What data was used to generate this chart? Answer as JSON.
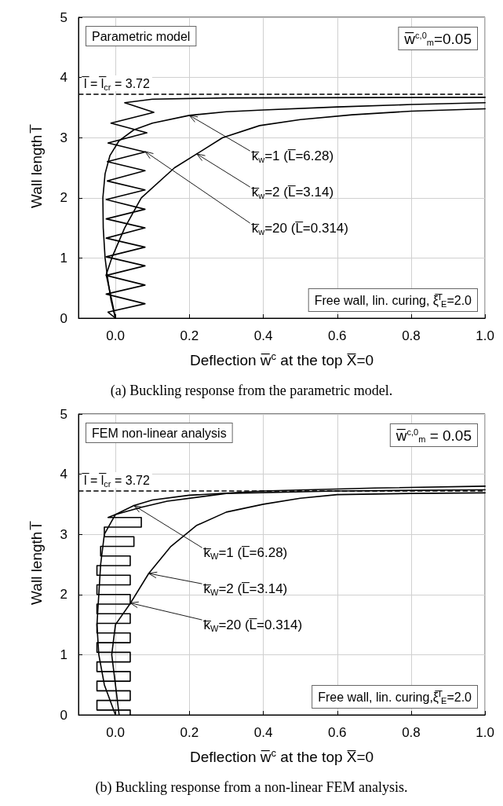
{
  "chart_data": [
    {
      "type": "line",
      "title": "(a) Buckling response from the parametric model.",
      "xlabel": "Deflection w̅$^{c}$ at the top X̅=0",
      "ylabel": "Wall length l̅",
      "xlim": [
        -0.1,
        1.0
      ],
      "ylim": [
        0,
        5
      ],
      "xticks": [
        {
          "value": 0,
          "label": "0.0"
        },
        {
          "value": 0.2,
          "label": "0.2"
        },
        {
          "value": 0.4,
          "label": "0.4"
        },
        {
          "value": 0.6,
          "label": "0.6"
        },
        {
          "value": 0.8,
          "label": "0.8"
        },
        {
          "value": 1,
          "label": "1.0"
        }
      ],
      "yticks": [
        0,
        1,
        2,
        3,
        4,
        5
      ],
      "grid": true,
      "line_style": "solid",
      "ref_lines": [
        {
          "axis": "y",
          "value": 3.72,
          "label": "l̅ = l̅$_{cr}$ = 3.72",
          "line_style": "dashed",
          "color": "#000000"
        }
      ],
      "annotations": [
        "Parametric model",
        "w̅$^{c,0}$$_{m}$=0.05",
        "Free wall, lin. curing, ξ̅$^{I}$$_{E}$=2.0",
        {
          "text": "k̅$_{w}$=1 (L̅=6.28)",
          "x": 0.2,
          "y": 3.37
        },
        {
          "text": "k̅$_{w}$=2 (L̅=3.14)",
          "x": 0.22,
          "y": 2.73
        },
        {
          "text": "k̅$_{w}$=20 (L̅=0.314)",
          "x": 0.08,
          "y": 2.77
        }
      ],
      "series": [
        {
          "color": "#000000",
          "x": [
            0,
            -0.012,
            -0.022,
            -0.028,
            -0.033,
            -0.034,
            -0.028,
            -0.015,
            0.01,
            0.05,
            0.1,
            0.2,
            0.3,
            0.4,
            0.6,
            0.8,
            1.0
          ],
          "values": [
            0,
            0.3,
            0.7,
            1.0,
            1.5,
            2.0,
            2.4,
            2.7,
            2.95,
            3.13,
            3.24,
            3.37,
            3.43,
            3.46,
            3.51,
            3.55,
            3.58
          ]
        },
        {
          "color": "#000000",
          "x": [
            0,
            -0.01,
            -0.025,
            -0.01,
            0.025,
            0.07,
            0.16,
            0.22,
            0.29,
            0.39,
            0.5,
            0.64,
            0.8,
            1.0
          ],
          "values": [
            0,
            0.3,
            0.72,
            1.0,
            1.5,
            2.0,
            2.5,
            2.73,
            3.0,
            3.2,
            3.3,
            3.38,
            3.44,
            3.48
          ]
        },
        {
          "color": "#000000",
          "x": [
            0,
            -0.02,
            0.08,
            -0.025,
            0.08,
            -0.025,
            0.08,
            -0.025,
            0.08,
            -0.025,
            0.08,
            -0.025,
            0.08,
            -0.025,
            0.08,
            -0.022,
            0.08,
            -0.022,
            0.08,
            -0.02,
            0.085,
            -0.012,
            0.104,
            0.025,
            0.1,
            0.3,
            1.0
          ],
          "values": [
            0,
            0.1,
            0.24,
            0.4,
            0.55,
            0.71,
            0.87,
            1.02,
            1.18,
            1.33,
            1.5,
            1.65,
            1.81,
            1.97,
            2.13,
            2.28,
            2.45,
            2.6,
            2.76,
            2.91,
            3.08,
            3.24,
            3.42,
            3.58,
            3.64,
            3.66,
            3.67
          ]
        }
      ]
    },
    {
      "type": "line",
      "title": "(b) Buckling response from a non-linear FEM analysis.",
      "xlabel": "Deflection w̅$^{c}$ at the top X̅=0",
      "ylabel": "Wall length l̅",
      "xlim": [
        -0.1,
        1.0
      ],
      "ylim": [
        0,
        5
      ],
      "xticks": [
        {
          "value": 0,
          "label": "0.0"
        },
        {
          "value": 0.2,
          "label": "0.2"
        },
        {
          "value": 0.4,
          "label": "0.4"
        },
        {
          "value": 0.6,
          "label": "0.6"
        },
        {
          "value": 0.8,
          "label": "0.8"
        },
        {
          "value": 1,
          "label": "1.0"
        }
      ],
      "yticks": [
        0,
        1,
        2,
        3,
        4,
        5
      ],
      "grid": true,
      "line_style": "solid",
      "ref_lines": [
        {
          "axis": "y",
          "value": 3.72,
          "label": "l̅ = l̅$_{cr}$ = 3.72",
          "line_style": "dashed",
          "color": "#000000"
        }
      ],
      "annotations": [
        "FEM non-linear analysis",
        "w̅$^{c,0}$$_{m}$ = 0.05",
        "Free wall, lin. curing,ξ̅$^{I}$$_{E}$=2.0",
        {
          "text": "k̅$_{W}$=1 (L̅=6.28)",
          "x": 0.05,
          "y": 3.48
        },
        {
          "text": "k̅$_{W}$=2 (L̅=3.14)",
          "x": 0.09,
          "y": 2.35
        },
        {
          "text": "k̅$_{W}$=20 (L̅=0.314)",
          "x": 0.04,
          "y": 1.86
        }
      ],
      "series": [
        {
          "color": "#000000",
          "x": [
            0,
            -0.03,
            -0.045,
            -0.05,
            -0.045,
            -0.04,
            -0.03,
            0,
            0.05,
            0.1,
            0.2,
            0.4,
            0.7,
            1.0
          ],
          "values": [
            0,
            0.5,
            1.0,
            1.5,
            2.0,
            2.5,
            3.0,
            3.33,
            3.48,
            3.57,
            3.65,
            3.72,
            3.77,
            3.8
          ]
        },
        {
          "color": "#000000",
          "x": [
            0.01,
            0,
            -0.01,
            0,
            0.04,
            0.09,
            0.15,
            0.22,
            0.3,
            0.4,
            0.5,
            0.6,
            0.8,
            1.0
          ],
          "values": [
            0,
            0.5,
            1.0,
            1.5,
            1.85,
            2.35,
            2.8,
            3.15,
            3.37,
            3.5,
            3.6,
            3.66,
            3.68,
            3.69
          ]
        },
        {
          "color": "#000000",
          "x": [
            0.04,
            0.04,
            -0.05,
            -0.05,
            0.04,
            0.04,
            -0.05,
            -0.05,
            0.04,
            0.04,
            -0.05,
            -0.05,
            0.04,
            0.04,
            -0.05,
            -0.05,
            0.04,
            0.04,
            -0.05,
            -0.05,
            0.04,
            0.04,
            -0.05,
            -0.05,
            0.04,
            0.04,
            -0.05,
            -0.05,
            0.04,
            0.04,
            -0.05,
            -0.05,
            0.04,
            0.04,
            -0.04,
            -0.04,
            0.05,
            0.05,
            -0.03,
            -0.03,
            0.07,
            0.07,
            -0.02,
            0,
            0.07,
            0.14,
            0.3,
            0.6,
            1.0
          ],
          "values": [
            0,
            0.08,
            0.08,
            0.24,
            0.24,
            0.4,
            0.4,
            0.56,
            0.56,
            0.72,
            0.72,
            0.88,
            0.88,
            1.04,
            1.04,
            1.2,
            1.2,
            1.36,
            1.36,
            1.52,
            1.52,
            1.68,
            1.68,
            1.84,
            1.84,
            2.0,
            2.0,
            2.16,
            2.16,
            2.32,
            2.32,
            2.48,
            2.48,
            2.64,
            2.64,
            2.8,
            2.8,
            2.96,
            2.96,
            3.12,
            3.12,
            3.28,
            3.28,
            3.33,
            3.45,
            3.55,
            3.68,
            3.72,
            3.74
          ]
        }
      ]
    }
  ]
}
